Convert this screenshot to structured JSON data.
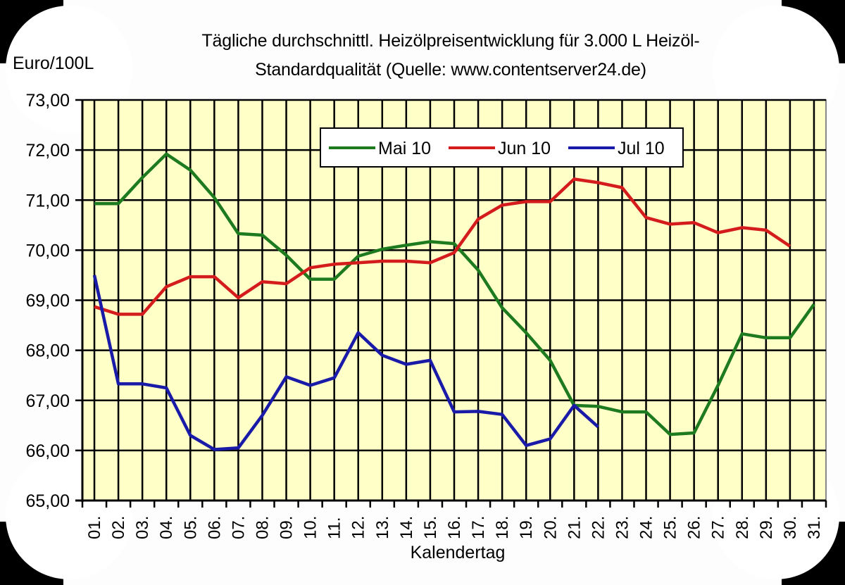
{
  "chart_data": {
    "type": "line",
    "title": "Tägliche durchschnittl. Heizölpreisentwicklung für 3.000 L Heizöl-Standardqualität (Quelle: www.contentserver24.de)",
    "title_lines": [
      "Tägliche durchschnittl. Heizölpreisentwicklung für 3.000 L Heizöl-",
      "Standardqualität (Quelle: www.contentserver24.de)"
    ],
    "xlabel": "Kalendertag",
    "ylabel": "Euro/100L",
    "ylim": [
      65,
      73
    ],
    "yticks": [
      "73,00",
      "72,00",
      "71,00",
      "70,00",
      "69,00",
      "68,00",
      "67,00",
      "66,00",
      "65,00"
    ],
    "categories": [
      "01.",
      "02.",
      "03.",
      "04.",
      "05.",
      "06.",
      "07.",
      "08.",
      "09.",
      "10.",
      "11.",
      "12.",
      "13.",
      "14.",
      "15.",
      "16.",
      "17.",
      "18.",
      "19.",
      "20.",
      "21.",
      "22.",
      "23.",
      "24.",
      "25.",
      "26.",
      "27.",
      "28.",
      "29.",
      "30.",
      "31."
    ],
    "grid": true,
    "plot_background": "#ffffc8",
    "legend_position": "top-center inside plot",
    "series": [
      {
        "name": "Mai 10",
        "color": "#1e7a1e",
        "values": [
          70.93,
          70.93,
          71.45,
          71.92,
          71.6,
          71.05,
          70.33,
          70.3,
          69.9,
          69.42,
          69.42,
          69.88,
          70.02,
          70.1,
          70.17,
          70.13,
          69.6,
          68.85,
          68.35,
          67.8,
          66.9,
          66.88,
          66.77,
          66.77,
          66.32,
          66.35,
          67.3,
          68.33,
          68.25,
          68.25,
          68.92
        ]
      },
      {
        "name": "Jun 10",
        "color": "#d41c1c",
        "values": [
          68.87,
          68.72,
          68.72,
          69.27,
          69.47,
          69.47,
          69.05,
          69.37,
          69.33,
          69.65,
          69.72,
          69.75,
          69.78,
          69.78,
          69.75,
          69.95,
          70.62,
          70.9,
          70.97,
          70.97,
          71.42,
          71.35,
          71.25,
          70.65,
          70.52,
          70.55,
          70.35,
          70.45,
          70.4,
          70.08
        ]
      },
      {
        "name": "Jul 10",
        "color": "#1a1aa8",
        "values": [
          69.5,
          67.33,
          67.33,
          67.25,
          66.3,
          66.02,
          66.05,
          66.7,
          67.47,
          67.3,
          67.45,
          68.35,
          67.9,
          67.72,
          67.8,
          66.77,
          66.78,
          66.72,
          66.1,
          66.23,
          66.9,
          66.47
        ]
      }
    ]
  }
}
